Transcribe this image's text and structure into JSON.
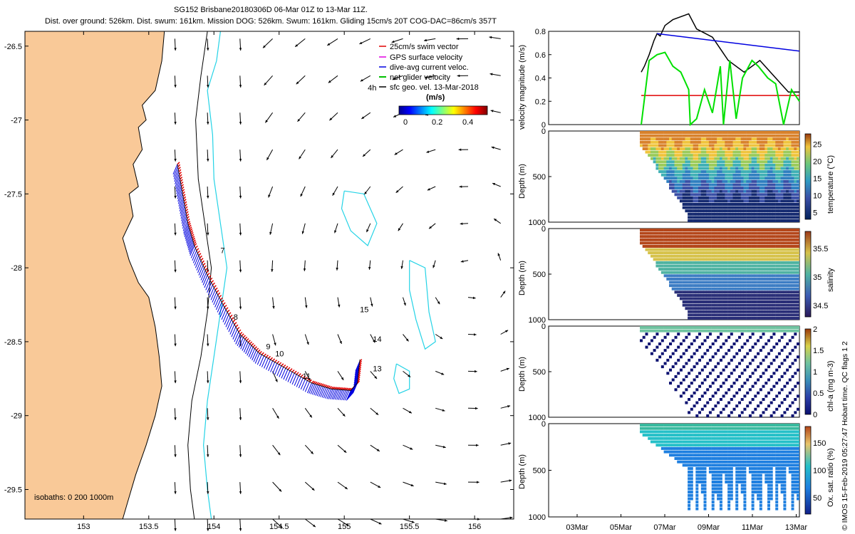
{
  "title": {
    "line1": "SG152 Brisbane20180306D 06-Mar 01Z to 13-Mar 11Z.",
    "line2": "Dist. over ground: 526km. Dist. swum: 161km. Mission DOG: 526km. Swum: 161km. Gliding 15cm/s 20T COG-DAC=86cm/s 357T"
  },
  "colors": {
    "land": "#F9C998",
    "isobath_200": "#24D3E6",
    "red": "#E00000",
    "blue": "#0000E0",
    "green": "#00E000"
  },
  "chart_data": [
    {
      "type": "map",
      "name": "track-map",
      "xlim": [
        152.55,
        156.3
      ],
      "ylim": [
        -29.7,
        -26.4
      ],
      "xticks": [
        153,
        153.5,
        154,
        154.5,
        155,
        155.5,
        156
      ],
      "yticks": [
        -26.5,
        -27,
        -27.5,
        -28,
        -28.5,
        -29,
        -29.5
      ],
      "legend": [
        {
          "label": "25cm/s swim vector",
          "color": "#E00000"
        },
        {
          "label": "GPS surface velocity",
          "color": "#E000E0"
        },
        {
          "label": "dive-avg current veloc.",
          "color": "#0000E0"
        },
        {
          "label": "net glider velocity",
          "color": "#00C000"
        },
        {
          "label": "sfc geo. vel. 13-Mar-2018",
          "color": "#000000"
        }
      ],
      "colorbar": {
        "label": "(m/s)",
        "ticks": [
          "0",
          "0.2",
          "0.4"
        ],
        "range": [
          0,
          0.5
        ]
      },
      "isobaths_label": "isobaths: 0   200  1000m",
      "annotations": [
        {
          "text": "4h",
          "lon": 155.18,
          "lat": -26.8
        },
        {
          "text": "7",
          "lon": 154.05,
          "lat": -27.9
        },
        {
          "text": "8",
          "lon": 154.15,
          "lat": -28.35
        },
        {
          "text": "9",
          "lon": 154.4,
          "lat": -28.55
        },
        {
          "text": "10",
          "lon": 154.47,
          "lat": -28.6
        },
        {
          "text": "11",
          "lon": 154.68,
          "lat": -28.75
        },
        {
          "text": "13",
          "lon": 155.22,
          "lat": -28.7
        },
        {
          "text": "14",
          "lon": 155.22,
          "lat": -28.5
        },
        {
          "text": "15",
          "lon": 155.12,
          "lat": -28.3
        }
      ],
      "track": [
        [
          153.72,
          -27.3
        ],
        [
          153.76,
          -27.5
        ],
        [
          153.8,
          -27.7
        ],
        [
          153.85,
          -27.85
        ],
        [
          153.95,
          -28.05
        ],
        [
          154.07,
          -28.25
        ],
        [
          154.2,
          -28.45
        ],
        [
          154.35,
          -28.58
        ],
        [
          154.55,
          -28.68
        ],
        [
          154.75,
          -28.78
        ],
        [
          154.9,
          -28.82
        ],
        [
          155.05,
          -28.83
        ],
        [
          155.1,
          -28.78
        ],
        [
          155.12,
          -28.62
        ]
      ],
      "coast": [
        [
          153.62,
          -26.4
        ],
        [
          153.6,
          -26.6
        ],
        [
          153.55,
          -26.8
        ],
        [
          153.45,
          -26.9
        ],
        [
          153.48,
          -27.0
        ],
        [
          153.42,
          -27.05
        ],
        [
          153.45,
          -27.2
        ],
        [
          153.38,
          -27.3
        ],
        [
          153.42,
          -27.45
        ],
        [
          153.35,
          -27.5
        ],
        [
          153.38,
          -27.65
        ],
        [
          153.3,
          -27.8
        ],
        [
          153.35,
          -27.95
        ],
        [
          153.42,
          -28.1
        ],
        [
          153.5,
          -28.2
        ],
        [
          153.55,
          -28.4
        ],
        [
          153.58,
          -28.6
        ],
        [
          153.6,
          -28.8
        ],
        [
          153.55,
          -29.0
        ],
        [
          153.48,
          -29.2
        ],
        [
          153.4,
          -29.4
        ],
        [
          153.35,
          -29.55
        ],
        [
          153.3,
          -29.7
        ]
      ],
      "isobath_1000": [
        [
          153.95,
          -26.4
        ],
        [
          153.9,
          -26.7
        ],
        [
          153.86,
          -27.0
        ],
        [
          153.88,
          -27.4
        ],
        [
          153.93,
          -27.7
        ],
        [
          153.98,
          -28.0
        ],
        [
          153.95,
          -28.3
        ],
        [
          153.9,
          -28.6
        ],
        [
          153.83,
          -28.9
        ],
        [
          153.8,
          -29.2
        ],
        [
          153.82,
          -29.5
        ],
        [
          153.85,
          -29.7
        ]
      ],
      "isobath_200": [
        [
          154.05,
          -26.4
        ],
        [
          154.02,
          -26.6
        ],
        [
          153.95,
          -26.8
        ],
        [
          153.99,
          -27.1
        ],
        [
          154.0,
          -27.4
        ],
        [
          154.05,
          -27.7
        ],
        [
          154.1,
          -28.0
        ],
        [
          154.05,
          -28.3
        ],
        [
          154.0,
          -28.6
        ],
        [
          153.95,
          -28.9
        ],
        [
          153.92,
          -29.2
        ],
        [
          153.95,
          -29.5
        ],
        [
          153.98,
          -29.7
        ]
      ],
      "eddy1": [
        [
          155.0,
          -27.48
        ],
        [
          155.15,
          -27.5
        ],
        [
          155.25,
          -27.7
        ],
        [
          155.18,
          -27.85
        ],
        [
          155.05,
          -27.75
        ],
        [
          154.98,
          -27.6
        ],
        [
          155.0,
          -27.48
        ]
      ],
      "eddy2": [
        [
          155.5,
          -27.95
        ],
        [
          155.62,
          -28.0
        ],
        [
          155.65,
          -28.3
        ],
        [
          155.7,
          -28.5
        ],
        [
          155.62,
          -28.55
        ],
        [
          155.55,
          -28.35
        ],
        [
          155.5,
          -28.15
        ],
        [
          155.5,
          -27.95
        ]
      ],
      "eddy3": [
        [
          155.4,
          -28.65
        ],
        [
          155.5,
          -28.7
        ],
        [
          155.5,
          -28.82
        ],
        [
          155.42,
          -28.85
        ],
        [
          155.38,
          -28.75
        ],
        [
          155.4,
          -28.65
        ]
      ]
    },
    {
      "type": "line",
      "name": "velocity-magnitude",
      "ylabel": "velocity magnitude (m/s)",
      "ylim": [
        0,
        0.8
      ],
      "yticks": [
        "0",
        "0.2",
        "0.4",
        "0.6",
        "0.8"
      ],
      "xlim": [
        0,
        1
      ],
      "series": [
        {
          "name": "sfc geo",
          "color": "#000000",
          "x": [
            0.0,
            0.02,
            0.05,
            0.08,
            0.1,
            0.12,
            0.15,
            0.2,
            0.3,
            0.35,
            0.45,
            0.55,
            0.65,
            0.75,
            0.85,
            0.93,
            1.0
          ],
          "y": [
            0.45,
            0.5,
            0.6,
            0.72,
            0.78,
            0.76,
            0.85,
            0.9,
            0.95,
            0.82,
            0.75,
            0.55,
            0.45,
            0.55,
            0.4,
            0.28,
            0.28
          ]
        },
        {
          "name": "blue",
          "color": "#0000E0",
          "x": [
            0.1,
            1.0
          ],
          "y": [
            0.78,
            0.63
          ]
        },
        {
          "name": "red",
          "color": "#E00000",
          "x": [
            0.0,
            1.0
          ],
          "y": [
            0.25,
            0.25
          ]
        },
        {
          "name": "green",
          "color": "#00E000",
          "x": [
            0.0,
            0.05,
            0.1,
            0.15,
            0.2,
            0.25,
            0.3,
            0.31,
            0.35,
            0.4,
            0.45,
            0.5,
            0.52,
            0.56,
            0.6,
            0.64,
            0.7,
            0.74,
            0.8,
            0.85,
            0.9,
            0.95,
            1.0
          ],
          "y": [
            0.0,
            0.55,
            0.6,
            0.62,
            0.5,
            0.45,
            0.3,
            0.0,
            0.05,
            0.3,
            0.1,
            0.5,
            0.0,
            0.55,
            0.05,
            0.4,
            0.55,
            0.5,
            0.4,
            0.35,
            0.0,
            0.3,
            0.2
          ]
        }
      ]
    },
    {
      "type": "scatter",
      "name": "temperature-section",
      "ylabel": "Depth (m)",
      "cblabel": "temperature (°C)",
      "ylim": [
        1000,
        0
      ],
      "yticks": [
        "0",
        "500",
        "1000"
      ],
      "cbticks": [
        "5",
        "10",
        "15",
        "20",
        "25"
      ],
      "cbrange": [
        3,
        28
      ]
    },
    {
      "type": "scatter",
      "name": "salinity-section",
      "ylabel": "Depth (m)",
      "cblabel": "salinity",
      "ylim": [
        1000,
        0
      ],
      "yticks": [
        "0",
        "500",
        "1000"
      ],
      "cbticks": [
        "34.5",
        "35",
        "35.5"
      ],
      "cbrange": [
        34.3,
        35.8
      ]
    },
    {
      "type": "scatter",
      "name": "chla-section",
      "ylabel": "Depth (m)",
      "cblabel": "chl-a (mg m-3)",
      "ylim": [
        1000,
        0
      ],
      "yticks": [
        "0",
        "500",
        "1000"
      ],
      "cbticks": [
        "0",
        "0.5",
        "1",
        "1.5",
        "2"
      ],
      "cbrange": [
        0,
        2
      ]
    },
    {
      "type": "scatter",
      "name": "oxygen-section",
      "ylabel": "Depth (m)",
      "cblabel": "Ox. sat. ratio (%)",
      "ylim": [
        1000,
        0
      ],
      "yticks": [
        "0",
        "500",
        "1000"
      ],
      "cbticks": [
        "50",
        "100",
        "150"
      ],
      "cbrange": [
        20,
        180
      ]
    },
    {
      "type": "axis",
      "name": "time-axis",
      "xticklabels": [
        "03Mar",
        "05Mar",
        "07Mar",
        "09Mar",
        "11Mar",
        "13Mar"
      ]
    }
  ],
  "footer": "© IMOS 15-Feb-2019 05:27:47 Hobart time. QC flags 1  2"
}
